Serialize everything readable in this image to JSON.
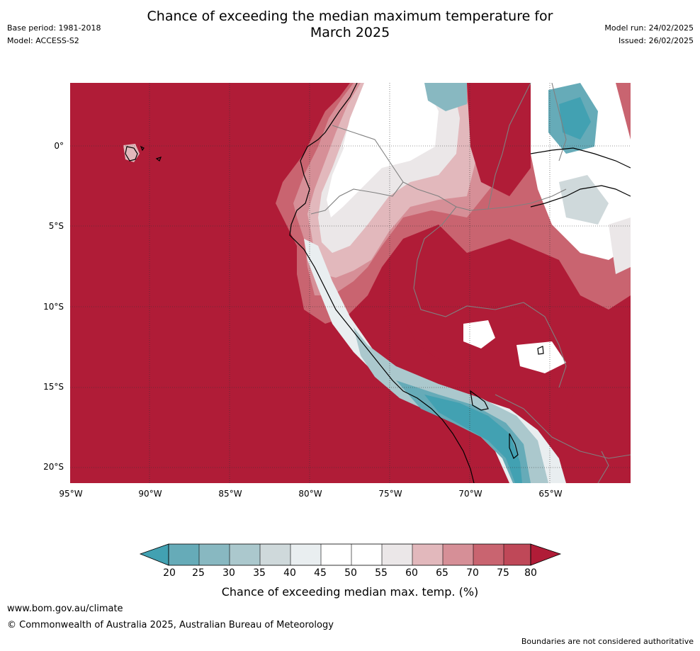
{
  "title": {
    "line1": "Chance of exceeding the median maximum temperature for",
    "line2": "March 2025"
  },
  "meta_left": {
    "base_period": "Base period: 1981-2018",
    "model": "Model: ACCESS-S2"
  },
  "meta_right": {
    "model_run": "Model run: 24/02/2025",
    "issued": "Issued: 26/02/2025"
  },
  "map": {
    "latitude_labels": [
      "0°",
      "5°S",
      "10°S",
      "15°S",
      "20°S"
    ],
    "longitude_labels": [
      "95°W",
      "90°W",
      "85°W",
      "80°W",
      "75°W",
      "70°W",
      "65°W"
    ],
    "ocean_value_band": ">80",
    "colors": {
      "very_high": "#b01c37",
      "high_80": "#bf4858",
      "c75": "#c96470",
      "c70": "#d68f97",
      "c65": "#e2b8bc",
      "c60": "#ebe7e8",
      "neutral": "#ffffff",
      "c45": "#e9eef0",
      "c40": "#cfd9db",
      "c35": "#abc8cd",
      "c30": "#88b8c1",
      "c25": "#66abb8",
      "low": "#42a1b2"
    },
    "coastline_color": "#000000",
    "border_color": "#808080",
    "grid_color": "#333333"
  },
  "colorbar": {
    "ticks": [
      "20",
      "25",
      "30",
      "35",
      "40",
      "45",
      "50",
      "55",
      "60",
      "65",
      "70",
      "75",
      "80"
    ],
    "colors": [
      "#42a1b2",
      "#66abb8",
      "#88b8c1",
      "#abc8cd",
      "#cfd9db",
      "#e9eef0",
      "#ffffff",
      "#ffffff",
      "#ebe7e8",
      "#e2b8bc",
      "#d68f97",
      "#c96470",
      "#bf4858",
      "#b01c37"
    ],
    "label": "Chance of exceeding median max. temp. (%)"
  },
  "footer": {
    "url": "www.bom.gov.au/climate",
    "copyright": "© Commonwealth of Australia 2025, Australian Bureau of Meteorology",
    "note": "Boundaries are not considered authoritative"
  }
}
